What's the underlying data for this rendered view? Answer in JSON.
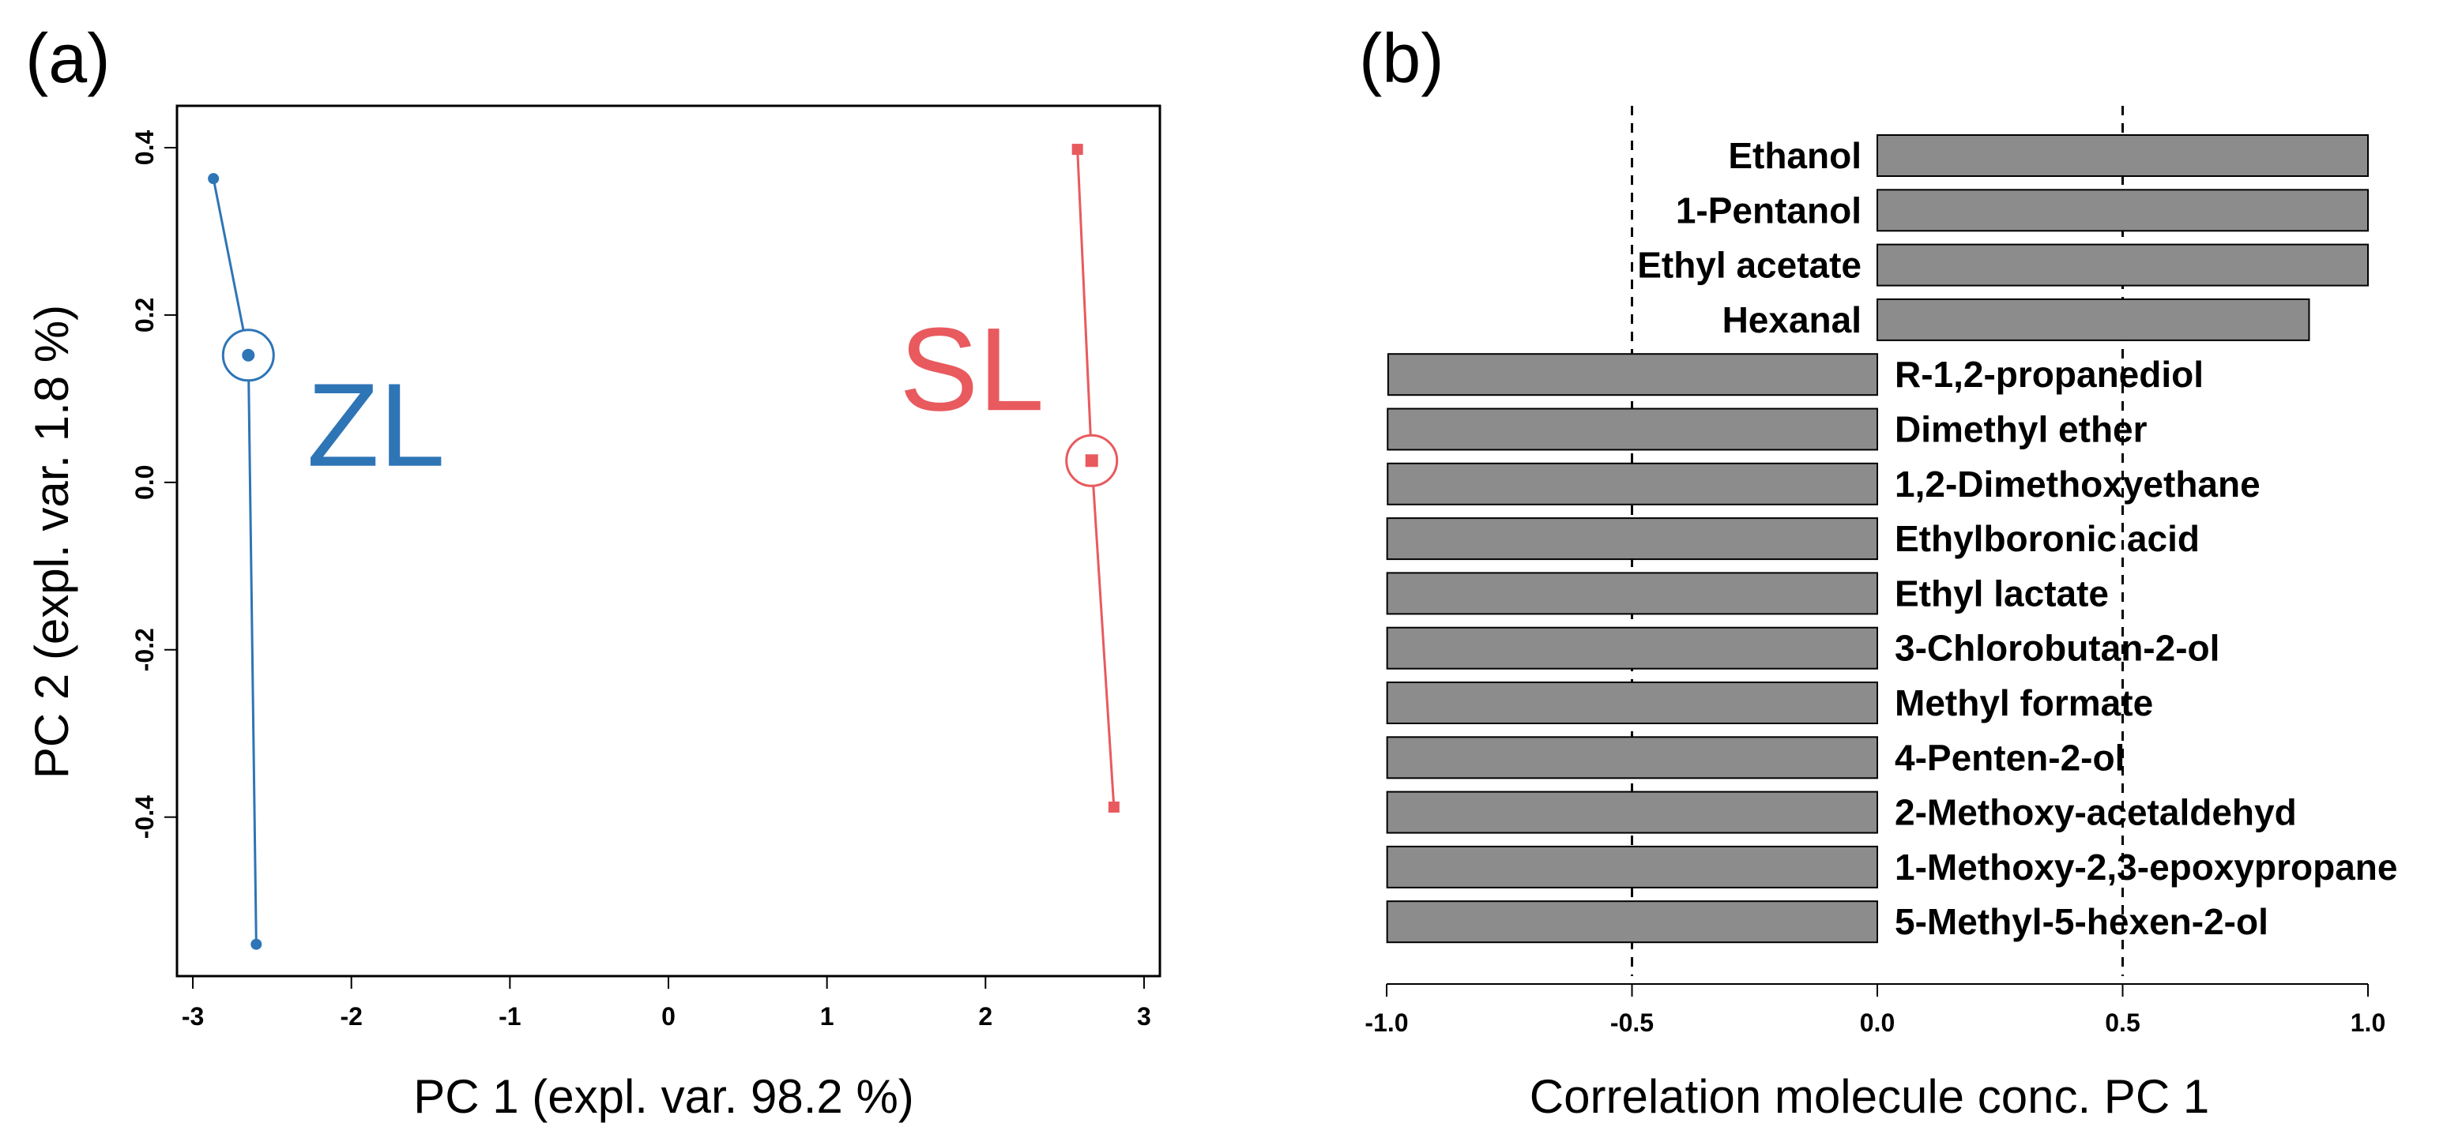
{
  "panels": {
    "a": {
      "label": "(a)",
      "chart_data": {
        "type": "scatter",
        "xlabel": "PC 1 (expl. var. 98.2 %)",
        "ylabel": "PC 2 (expl. var. 1.8 %)",
        "xlim": [
          -3.1,
          3.1
        ],
        "ylim": [
          -0.59,
          0.45
        ],
        "xticks": [
          -3,
          -2,
          -1,
          0,
          1,
          2,
          3
        ],
        "xtick_labels": [
          "-3",
          "-2",
          "-1",
          "0",
          "1",
          "2",
          "3"
        ],
        "yticks": [
          -0.4,
          -0.2,
          0.0,
          0.2,
          0.4
        ],
        "ytick_labels": [
          "-0.4",
          "-0.2",
          "0.0",
          "0.2",
          "0.4"
        ],
        "series": [
          {
            "name": "ZL",
            "color": "#2e75b6",
            "marker": "circle",
            "points": [
              {
                "x": -2.87,
                "y": 0.363
              },
              {
                "x": -2.6,
                "y": -0.552
              }
            ],
            "centroid": {
              "x": -2.65,
              "y": 0.152
            }
          },
          {
            "name": "SL",
            "color": "#e85a5e",
            "marker": "square",
            "points": [
              {
                "x": 2.58,
                "y": 0.398
              },
              {
                "x": 2.81,
                "y": -0.388
              }
            ],
            "centroid": {
              "x": 2.67,
              "y": 0.026
            }
          }
        ]
      }
    },
    "b": {
      "label": "(b)",
      "chart_data": {
        "type": "bar",
        "orientation": "horizontal",
        "xlabel": "Correlation molecule conc. PC 1",
        "xlim": [
          -1.0,
          1.0
        ],
        "xticks": [
          -1.0,
          -0.5,
          0.0,
          0.5,
          1.0
        ],
        "xtick_labels": [
          "-1.0",
          "-0.5",
          "0.0",
          "0.5",
          "1.0"
        ],
        "reference_lines": [
          -0.5,
          0.5
        ],
        "bar_color": "#8c8c8c",
        "categories": [
          "Ethanol",
          "1-Pentanol",
          "Ethyl acetate",
          "Hexanal",
          "R-1,2-propanediol",
          "Dimethyl ether",
          "1,2-Dimethoxyethane",
          "Ethylboronic acid",
          "Ethyl lactate",
          "3-Chlorobutan-2-ol",
          "Methyl formate",
          "4-Penten-2-ol",
          "2-Methoxy-acetaldehyd",
          "1-Methoxy-2,3-epoxypropane",
          "5-Methyl-5-hexen-2-ol"
        ],
        "values": [
          1.0,
          1.0,
          1.0,
          0.88,
          -0.997,
          -0.998,
          -0.998,
          -0.999,
          -0.999,
          -0.999,
          -0.999,
          -0.999,
          -0.999,
          -0.999,
          -0.999
        ]
      }
    }
  }
}
